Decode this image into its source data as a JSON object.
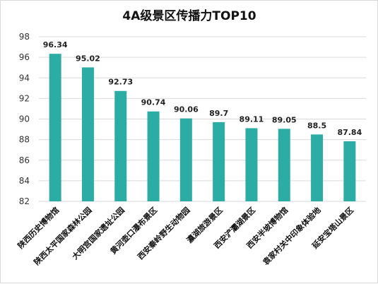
{
  "chart_data": {
    "type": "bar",
    "title": "4A级景区传播力TOP10",
    "categories": [
      "陕西历史博物馆",
      "陕西太平国家森林公园",
      "大明宫国家遗址公园",
      "黄河壶口瀑布景区",
      "西安秦岭野生动物园",
      "瀛湖旅游景区",
      "西安浐灞湖景区",
      "西安半坡博物馆",
      "袁家村关中印象体验地",
      "延安宝塔山景区"
    ],
    "values": [
      96.34,
      95.02,
      92.73,
      90.74,
      90.06,
      89.7,
      89.11,
      89.05,
      88.5,
      87.84
    ],
    "data_labels": [
      "96.34",
      "95.02",
      "92.73",
      "90.74",
      "90.06",
      "89.7",
      "89.11",
      "89.05",
      "88.5",
      "87.84"
    ],
    "ylim": [
      82,
      98
    ],
    "yticks": [
      82,
      84,
      86,
      88,
      90,
      92,
      94,
      96,
      98
    ],
    "xlabel": "",
    "ylabel": "",
    "grid": true,
    "legend": "none",
    "bar_color": "#2bada5"
  }
}
